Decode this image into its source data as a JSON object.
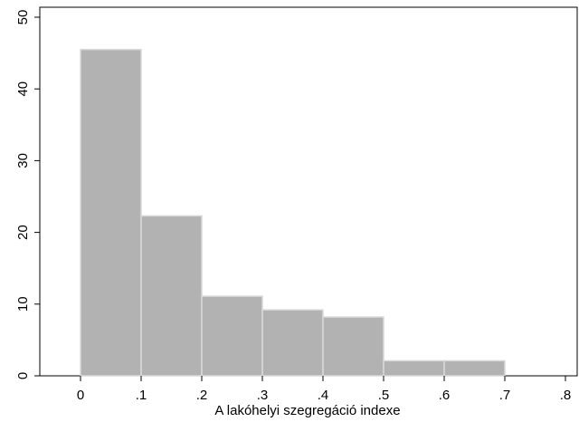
{
  "chart_data": {
    "type": "bar",
    "title": "",
    "xlabel": "A lakóhelyi szegregáció indexe",
    "ylabel": "",
    "bin_edges": [
      0,
      0.1,
      0.2,
      0.3,
      0.4,
      0.5,
      0.6,
      0.7
    ],
    "values": [
      45.5,
      22.3,
      11.1,
      9.2,
      8.2,
      2.1,
      2.1
    ],
    "xlim": [
      -0.065,
      0.815
    ],
    "ylim": [
      0,
      50
    ],
    "xticks": [
      0,
      0.1,
      0.2,
      0.3,
      0.4,
      0.5,
      0.6,
      0.7,
      0.8
    ],
    "xtick_labels": [
      "0",
      ".1",
      ".2",
      ".3",
      ".4",
      ".5",
      ".6",
      ".7",
      ".8"
    ],
    "yticks": [
      0,
      10,
      20,
      30,
      40,
      50
    ],
    "ytick_labels": [
      "0",
      "10",
      "20",
      "30",
      "40",
      "50"
    ],
    "grid": false,
    "bar_color": "#b2b2b2",
    "bar_edge_color": "#d9d9d9"
  }
}
